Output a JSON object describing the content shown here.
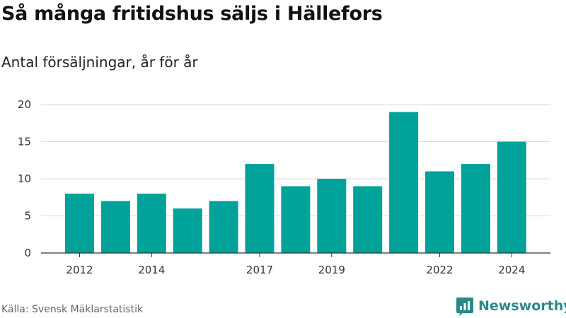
{
  "header": {
    "title": "Så många fritidshus säljs i Hällefors",
    "subtitle": "Antal försäljningar, år för år"
  },
  "footer": {
    "source": "Källa: Svensk Mäklarstatistik",
    "brand": "Newsworthy",
    "brand_icon": "newsworthy-logo-icon"
  },
  "colors": {
    "bar": "#00A29A",
    "grid": "#d9d9d9",
    "axis": "#333333",
    "brand": "#2a8a88"
  },
  "chart_data": {
    "type": "bar",
    "title": "Så många fritidshus säljs i Hällefors",
    "subtitle": "Antal försäljningar, år för år",
    "xlabel": "",
    "ylabel": "",
    "categories": [
      "2012",
      "2013",
      "2014",
      "2015",
      "2016",
      "2017",
      "2018",
      "2019",
      "2020",
      "2021",
      "2022",
      "2023",
      "2024"
    ],
    "values": [
      8,
      7,
      8,
      6,
      7,
      12,
      9,
      10,
      9,
      19,
      11,
      12,
      15
    ],
    "x_tick_labels": [
      "2012",
      "2014",
      "2017",
      "2019",
      "2022",
      "2024"
    ],
    "y_ticks": [
      0,
      5,
      10,
      15,
      20
    ],
    "ylim": [
      0,
      20
    ],
    "grid": true,
    "legend": "none"
  }
}
